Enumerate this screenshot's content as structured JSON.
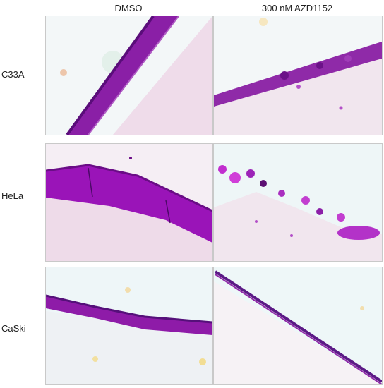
{
  "columns": [
    "DMSO",
    "300 nM AZD1152"
  ],
  "rows": [
    "C33A",
    "HeLa",
    "CaSki"
  ],
  "colors": {
    "tissue_purple": "#8a1fa6",
    "tissue_dark": "#5a0d7a",
    "stroma_pink": "#e7c3df",
    "background": "#f2f6f7"
  }
}
